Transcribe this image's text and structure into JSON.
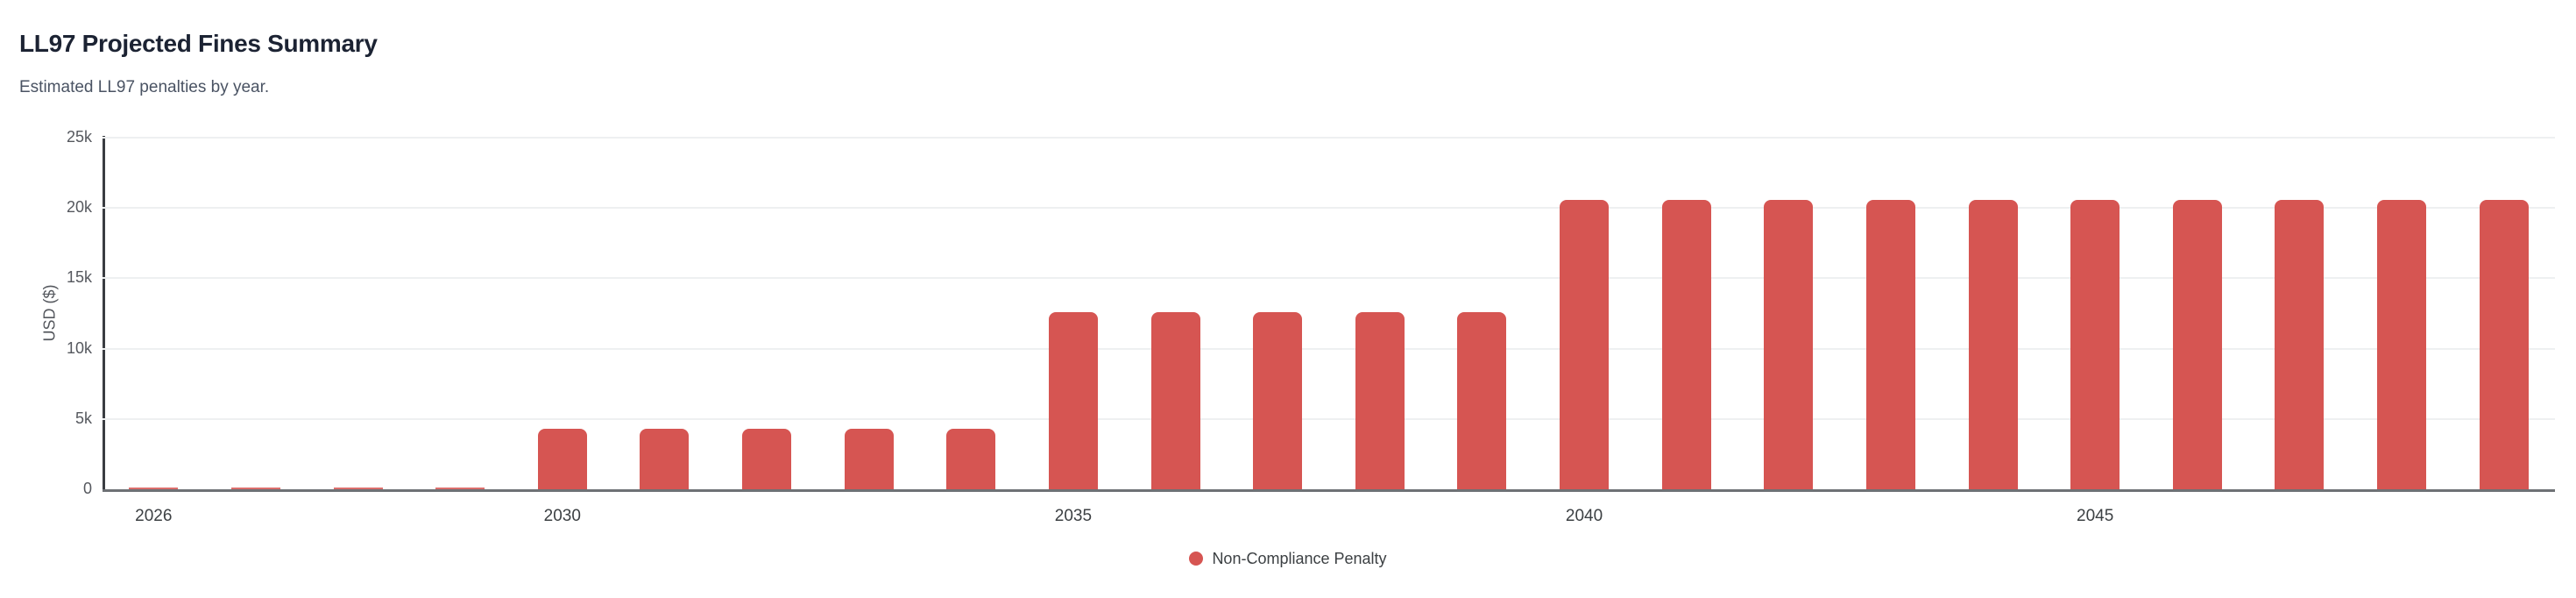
{
  "header": {
    "title": "LL97 Projected Fines Summary",
    "subtitle": "Estimated LL97 penalties by year."
  },
  "chart_data": {
    "type": "bar",
    "title": "LL97 Projected Fines Summary",
    "subtitle": "Estimated LL97 penalties by year.",
    "xlabel": "",
    "ylabel": "USD ($)",
    "ylim": [
      0,
      25000
    ],
    "grid": "horizontal",
    "legend_position": "bottom-center",
    "bar_color": "#d65552",
    "categories": [
      2026,
      2027,
      2028,
      2029,
      2030,
      2031,
      2032,
      2033,
      2034,
      2035,
      2036,
      2037,
      2038,
      2039,
      2040,
      2041,
      2042,
      2043,
      2044,
      2045,
      2046,
      2047,
      2048,
      2049
    ],
    "series": [
      {
        "name": "Non-Compliance Penalty",
        "color": "#d65552",
        "values": [
          0,
          0,
          0,
          0,
          4300,
          4300,
          4300,
          4300,
          4300,
          12600,
          12600,
          12600,
          12600,
          12600,
          20600,
          20600,
          20600,
          20600,
          20600,
          20600,
          20600,
          20600,
          20600,
          20600
        ]
      }
    ],
    "yticks": [
      {
        "value": 0,
        "label": "0"
      },
      {
        "value": 5000,
        "label": "5k"
      },
      {
        "value": 10000,
        "label": "10k"
      },
      {
        "value": 15000,
        "label": "15k"
      },
      {
        "value": 20000,
        "label": "20k"
      },
      {
        "value": 25000,
        "label": "25k"
      }
    ],
    "xticks_shown": [
      "2026",
      "2030",
      "2035",
      "2040",
      "2045"
    ]
  },
  "legend": {
    "label": "Non-Compliance Penalty",
    "marker_color": "#d65552"
  },
  "colors": {
    "bar": "#d65552",
    "title_text": "#1c2333",
    "subtitle_text": "#4a5363",
    "axis_text": "#55585e",
    "x_tick_text": "#3c4043",
    "gridline": "#eef0f1",
    "y_axis_line": "#3a3d42",
    "x_axis_line": "#6e7175",
    "background": "#ffffff"
  }
}
